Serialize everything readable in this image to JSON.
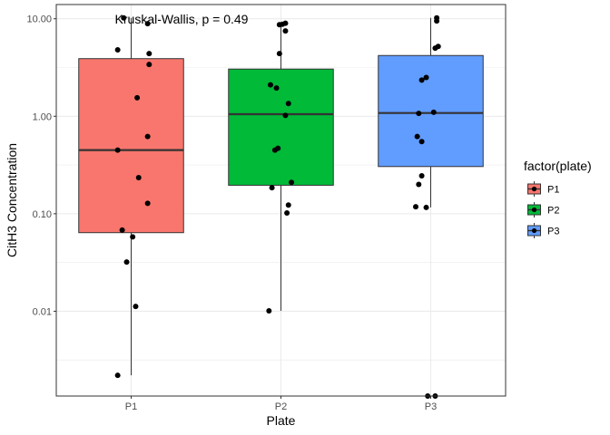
{
  "chart_data": {
    "type": "box",
    "xlabel": "Plate",
    "ylabel": "CitH3 Concentration",
    "annotation": "Kruskal-Wallis, p = 0.49",
    "y_scale": "log10",
    "ylim": [
      0.00135,
      14
    ],
    "y_ticks": [
      {
        "value": 0.01,
        "label": "0.01"
      },
      {
        "value": 0.1,
        "label": "0.10"
      },
      {
        "value": 1,
        "label": "1.00"
      },
      {
        "value": 10,
        "label": "10.00"
      }
    ],
    "categories": [
      "P1",
      "P2",
      "P3"
    ],
    "legend": {
      "title": "factor(plate)",
      "position": "right"
    },
    "grid": true,
    "series": [
      {
        "name": "P1",
        "color": "#F8766D",
        "box": {
          "whisker_low": 0.0022,
          "q1": 0.064,
          "median": 0.45,
          "q3": 3.9,
          "whisker_high": 10.2
        },
        "points": [
          10.2,
          8.9,
          4.8,
          4.4,
          3.4,
          1.55,
          0.62,
          0.45,
          0.235,
          0.128,
          0.068,
          0.058,
          0.032,
          0.0112,
          0.0022
        ],
        "jitter": [
          -0.05,
          0.11,
          -0.09,
          0.12,
          0.12,
          0.04,
          0.11,
          -0.09,
          0.05,
          0.11,
          -0.06,
          0.01,
          -0.03,
          0.03,
          -0.09
        ]
      },
      {
        "name": "P2",
        "color": "#00BA38",
        "box": {
          "whisker_low": 0.0101,
          "q1": 0.196,
          "median": 1.05,
          "q3": 3.05,
          "whisker_high": 9.0
        },
        "points": [
          9.0,
          8.8,
          8.7,
          7.5,
          4.4,
          2.1,
          1.95,
          1.35,
          1.02,
          0.47,
          0.45,
          0.21,
          0.185,
          0.123,
          0.102,
          0.0101
        ],
        "jitter": [
          0.03,
          0.01,
          -0.01,
          0.03,
          -0.01,
          -0.07,
          -0.03,
          0.05,
          0.03,
          -0.02,
          -0.04,
          0.07,
          -0.06,
          0.05,
          0.04,
          -0.08
        ]
      },
      {
        "name": "P3",
        "color": "#619CFF",
        "box": {
          "whisker_low": 0.116,
          "q1": 0.305,
          "median": 1.08,
          "q3": 4.2,
          "whisker_high": 10.2
        },
        "points": [
          10.2,
          9.5,
          5.2,
          5.0,
          2.5,
          2.35,
          1.1,
          1.07,
          0.62,
          0.55,
          0.245,
          0.2,
          0.118,
          0.116,
          0.00135,
          0.00135
        ],
        "jitter": [
          0.04,
          0.04,
          0.05,
          0.03,
          -0.03,
          -0.06,
          0.02,
          -0.08,
          -0.09,
          -0.06,
          -0.06,
          -0.08,
          -0.1,
          -0.03,
          -0.02,
          0.03
        ]
      }
    ]
  }
}
